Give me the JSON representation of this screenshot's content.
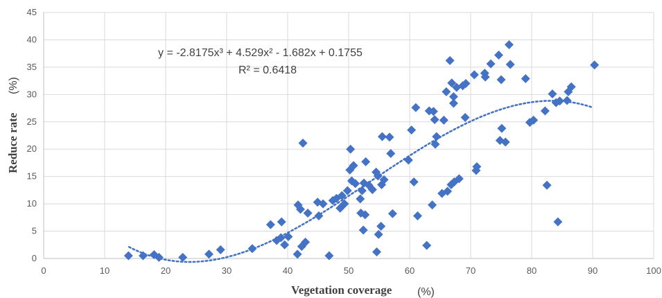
{
  "chart_data": {
    "type": "scatter",
    "xlabel": "Vegetation coverage",
    "xunit": "(%)",
    "ylabel": "Reduce rate",
    "yunit": "(%)",
    "xlim": [
      0,
      100
    ],
    "ylim": [
      0,
      45
    ],
    "xticks": [
      0,
      10,
      20,
      30,
      40,
      50,
      60,
      70,
      80,
      90,
      100
    ],
    "yticks": [
      0,
      5,
      10,
      15,
      20,
      25,
      30,
      35,
      40,
      45
    ],
    "grid": true,
    "legend": "none",
    "marker_color": "#4472c4",
    "trendline_color": "#4472c4",
    "equation": "y = -2.8175x³ + 4.529x² - 1.682x + 0.1755",
    "r_squared": "R² = 0.6418",
    "trendline_coefficients": [
      -2.8175,
      4.529,
      -1.682,
      0.1755
    ],
    "trendline_range": [
      14,
      90
    ],
    "points": [
      [
        13.9,
        0.5
      ],
      [
        16.3,
        0.5
      ],
      [
        18.1,
        0.7
      ],
      [
        18.9,
        0.2
      ],
      [
        22.8,
        0.2
      ],
      [
        27.1,
        0.8
      ],
      [
        29.0,
        1.6
      ],
      [
        34.2,
        1.8
      ],
      [
        37.2,
        6.2
      ],
      [
        38.2,
        3.3
      ],
      [
        39.0,
        6.7
      ],
      [
        38.9,
        3.8
      ],
      [
        39.5,
        2.5
      ],
      [
        40.1,
        4.0
      ],
      [
        41.6,
        0.8
      ],
      [
        41.7,
        9.8
      ],
      [
        42.1,
        9.0
      ],
      [
        42.3,
        2.2
      ],
      [
        42.9,
        3.0
      ],
      [
        43.3,
        8.3
      ],
      [
        42.5,
        21.1
      ],
      [
        44.9,
        10.3
      ],
      [
        45.1,
        7.8
      ],
      [
        45.8,
        10.0
      ],
      [
        46.8,
        0.5
      ],
      [
        47.4,
        10.6
      ],
      [
        48.0,
        11.0
      ],
      [
        48.6,
        9.2
      ],
      [
        48.9,
        11.5
      ],
      [
        49.3,
        10.0
      ],
      [
        49.8,
        12.4
      ],
      [
        50.2,
        16.2
      ],
      [
        50.3,
        20.0
      ],
      [
        50.5,
        14.2
      ],
      [
        50.8,
        17.0
      ],
      [
        51.1,
        13.7
      ],
      [
        51.9,
        10.9
      ],
      [
        52.2,
        12.4
      ],
      [
        52.5,
        13.8
      ],
      [
        52.0,
        8.3
      ],
      [
        52.4,
        5.2
      ],
      [
        52.7,
        8.0
      ],
      [
        52.8,
        17.7
      ],
      [
        53.3,
        13.4
      ],
      [
        53.9,
        12.6
      ],
      [
        54.5,
        15.8
      ],
      [
        54.8,
        15.1
      ],
      [
        54.6,
        1.2
      ],
      [
        54.9,
        4.4
      ],
      [
        55.3,
        5.9
      ],
      [
        55.4,
        13.5
      ],
      [
        55.5,
        22.3
      ],
      [
        55.8,
        14.4
      ],
      [
        56.7,
        22.2
      ],
      [
        56.9,
        19.2
      ],
      [
        57.2,
        8.2
      ],
      [
        59.8,
        18.0
      ],
      [
        60.3,
        23.5
      ],
      [
        60.7,
        14.0
      ],
      [
        61.0,
        27.6
      ],
      [
        61.3,
        7.8
      ],
      [
        62.8,
        2.4
      ],
      [
        63.2,
        27.0
      ],
      [
        63.7,
        9.8
      ],
      [
        63.9,
        26.9
      ],
      [
        64.1,
        25.4
      ],
      [
        64.2,
        20.9
      ],
      [
        64.4,
        22.3
      ],
      [
        65.3,
        11.9
      ],
      [
        65.6,
        25.3
      ],
      [
        66.0,
        30.5
      ],
      [
        66.2,
        12.3
      ],
      [
        66.6,
        36.2
      ],
      [
        66.8,
        13.5
      ],
      [
        66.9,
        32.1
      ],
      [
        67.2,
        29.6
      ],
      [
        67.2,
        28.4
      ],
      [
        67.3,
        14.0
      ],
      [
        67.7,
        31.3
      ],
      [
        68.1,
        14.6
      ],
      [
        68.7,
        31.6
      ],
      [
        69.1,
        25.8
      ],
      [
        69.2,
        32.0
      ],
      [
        70.6,
        33.6
      ],
      [
        70.9,
        16.1
      ],
      [
        71.0,
        16.8
      ],
      [
        72.3,
        33.9
      ],
      [
        72.4,
        33.2
      ],
      [
        73.3,
        35.6
      ],
      [
        74.6,
        37.2
      ],
      [
        74.8,
        21.6
      ],
      [
        75.0,
        32.7
      ],
      [
        75.1,
        23.8
      ],
      [
        75.7,
        21.3
      ],
      [
        76.3,
        39.1
      ],
      [
        76.5,
        35.5
      ],
      [
        79.0,
        32.9
      ],
      [
        79.7,
        24.9
      ],
      [
        80.3,
        25.3
      ],
      [
        82.2,
        27.0
      ],
      [
        82.5,
        13.4
      ],
      [
        83.4,
        30.1
      ],
      [
        84.0,
        28.5
      ],
      [
        84.3,
        6.7
      ],
      [
        84.6,
        28.8
      ],
      [
        85.8,
        28.9
      ],
      [
        86.0,
        30.5
      ],
      [
        86.5,
        31.4
      ],
      [
        90.3,
        35.4
      ]
    ]
  }
}
